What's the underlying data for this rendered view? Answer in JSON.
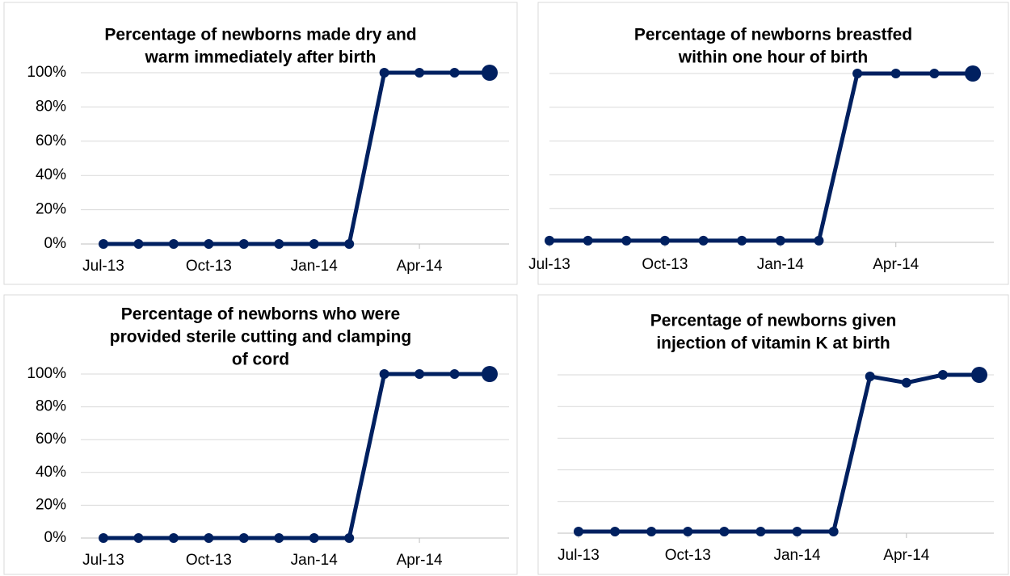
{
  "chart_data": [
    {
      "type": "line",
      "title": [
        "Percentage of newborns made dry and",
        "warm immediately after birth"
      ],
      "categories": [
        "Jul-13",
        null,
        null,
        "Oct-13",
        null,
        null,
        "Jan-14",
        null,
        null,
        "Apr-14",
        null,
        null
      ],
      "series": [
        {
          "name": null,
          "color": "#002060",
          "values": [
            0,
            0,
            0,
            0,
            0,
            0,
            0,
            0,
            100,
            100,
            100,
            100
          ]
        }
      ],
      "ylim": [
        0,
        100
      ],
      "yticks": [
        {
          "value": 0,
          "label": "0%"
        },
        {
          "value": 20,
          "label": "20%"
        },
        {
          "value": 40,
          "label": "40%"
        },
        {
          "value": 60,
          "label": "60%"
        },
        {
          "value": 80,
          "label": "80%"
        },
        {
          "value": 100,
          "label": "100%"
        }
      ],
      "ytick_labels": true,
      "grid": true
    },
    {
      "type": "line",
      "title": [
        "Percentage of newborns breastfed",
        "within one hour of birth"
      ],
      "categories": [
        "Jul-13",
        null,
        null,
        "Oct-13",
        null,
        null,
        "Jan-14",
        null,
        null,
        "Apr-14",
        null,
        null
      ],
      "series": [
        {
          "name": null,
          "color": "#002060",
          "values": [
            1,
            1,
            1,
            1,
            1,
            1,
            1,
            1,
            100,
            100,
            100,
            100
          ]
        }
      ],
      "ylim": [
        0,
        100
      ],
      "yticks": [
        0,
        20,
        40,
        60,
        80,
        100
      ],
      "ytick_labels": false,
      "grid": true
    },
    {
      "type": "line",
      "title": [
        "Percentage of newborns who were",
        "provided sterile cutting and clamping",
        "of cord"
      ],
      "categories": [
        "Jul-13",
        null,
        null,
        "Oct-13",
        null,
        null,
        "Jan-14",
        null,
        null,
        "Apr-14",
        null,
        null
      ],
      "series": [
        {
          "name": null,
          "color": "#002060",
          "values": [
            0,
            0,
            0,
            0,
            0,
            0,
            0,
            0,
            100,
            100,
            100,
            100
          ]
        }
      ],
      "ylim": [
        0,
        100
      ],
      "yticks": [
        {
          "value": 0,
          "label": "0%"
        },
        {
          "value": 20,
          "label": "20%"
        },
        {
          "value": 40,
          "label": "40%"
        },
        {
          "value": 60,
          "label": "60%"
        },
        {
          "value": 80,
          "label": "80%"
        },
        {
          "value": 100,
          "label": "100%"
        }
      ],
      "ytick_labels": true,
      "grid": true
    },
    {
      "type": "line",
      "title": [
        "Percentage of newborns given",
        "injection of vitamin K at birth"
      ],
      "categories": [
        "Jul-13",
        null,
        null,
        "Oct-13",
        null,
        null,
        "Jan-14",
        null,
        null,
        "Apr-14",
        null,
        null
      ],
      "series": [
        {
          "name": null,
          "color": "#002060",
          "values": [
            1,
            1,
            1,
            1,
            1,
            1,
            1,
            1,
            99,
            95,
            100,
            100
          ]
        }
      ],
      "ylim": [
        0,
        100
      ],
      "yticks": [
        0,
        20,
        40,
        60,
        80,
        100
      ],
      "ytick_labels": false,
      "grid": true
    }
  ]
}
